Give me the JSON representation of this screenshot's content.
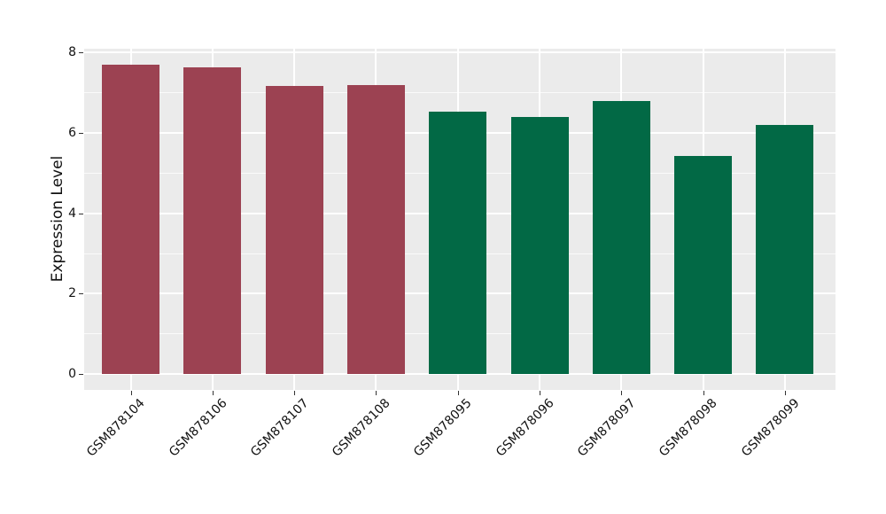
{
  "chart_data": {
    "type": "bar",
    "title": "",
    "xlabel": "",
    "ylabel": "Expression Level",
    "categories": [
      "GSM878104",
      "GSM878106",
      "GSM878107",
      "GSM878108",
      "GSM878095",
      "GSM878096",
      "GSM878097",
      "GSM878098",
      "GSM878099"
    ],
    "values": [
      7.69,
      7.62,
      7.17,
      7.18,
      6.52,
      6.4,
      6.78,
      5.42,
      6.19
    ],
    "groups": [
      "group1",
      "group1",
      "group1",
      "group1",
      "group2",
      "group2",
      "group2",
      "group2",
      "group2"
    ],
    "colors": {
      "group1": "#9C4252",
      "group2": "#026945"
    },
    "ylim": [
      -0.39,
      8.09
    ],
    "yticks": [
      0,
      2,
      4,
      6,
      8
    ],
    "yticks_minor": [
      1,
      3,
      5,
      7
    ],
    "x_tick_rotation_deg": 45,
    "grid": true,
    "legend": "none",
    "panel_background": "#EBEBEB",
    "grid_color": "#FFFFFF",
    "figure_background": "#FFFFFF"
  }
}
